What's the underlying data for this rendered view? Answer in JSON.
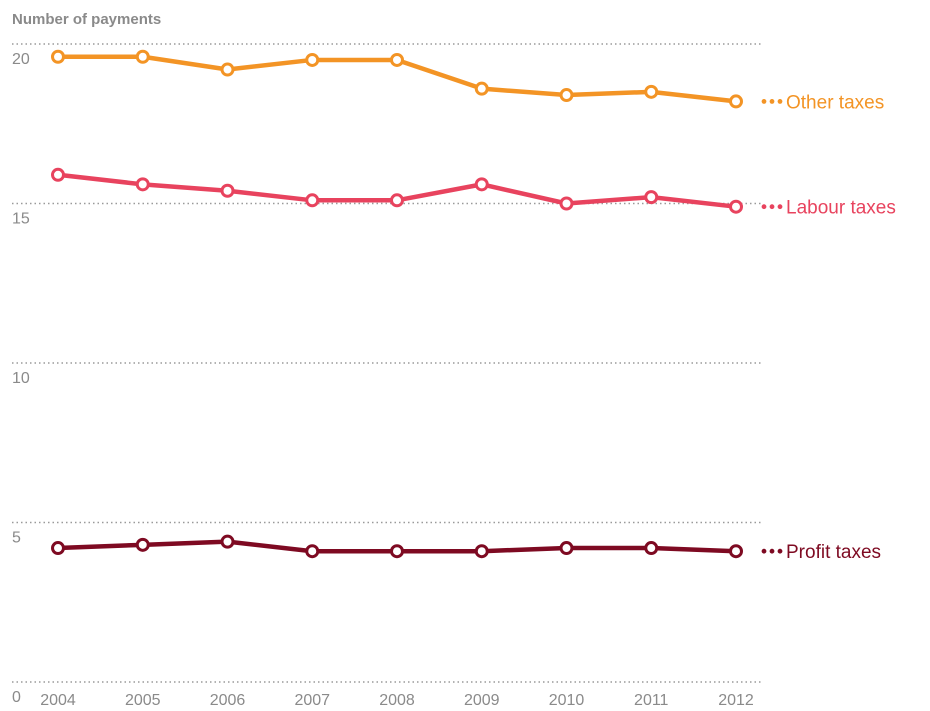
{
  "chart_data": {
    "type": "line",
    "title": "",
    "ylabel": "Number of payments",
    "xlabel": "",
    "x": [
      "2004",
      "2005",
      "2006",
      "2007",
      "2008",
      "2009",
      "2010",
      "2011",
      "2012"
    ],
    "yticks": [
      "0",
      "5",
      "10",
      "15",
      "20"
    ],
    "ylim": [
      0,
      20
    ],
    "grid": true,
    "series": [
      {
        "name": "Other taxes",
        "color": "#f39425",
        "values": [
          19.6,
          19.6,
          19.2,
          19.5,
          19.5,
          18.6,
          18.4,
          18.5,
          18.2
        ]
      },
      {
        "name": "Labour taxes",
        "color": "#e8435e",
        "values": [
          15.9,
          15.6,
          15.4,
          15.1,
          15.1,
          15.6,
          15.0,
          15.2,
          14.9
        ]
      },
      {
        "name": "Profit taxes",
        "color": "#7e0a22",
        "values": [
          4.2,
          4.3,
          4.4,
          4.1,
          4.1,
          4.1,
          4.2,
          4.2,
          4.1
        ]
      }
    ]
  }
}
